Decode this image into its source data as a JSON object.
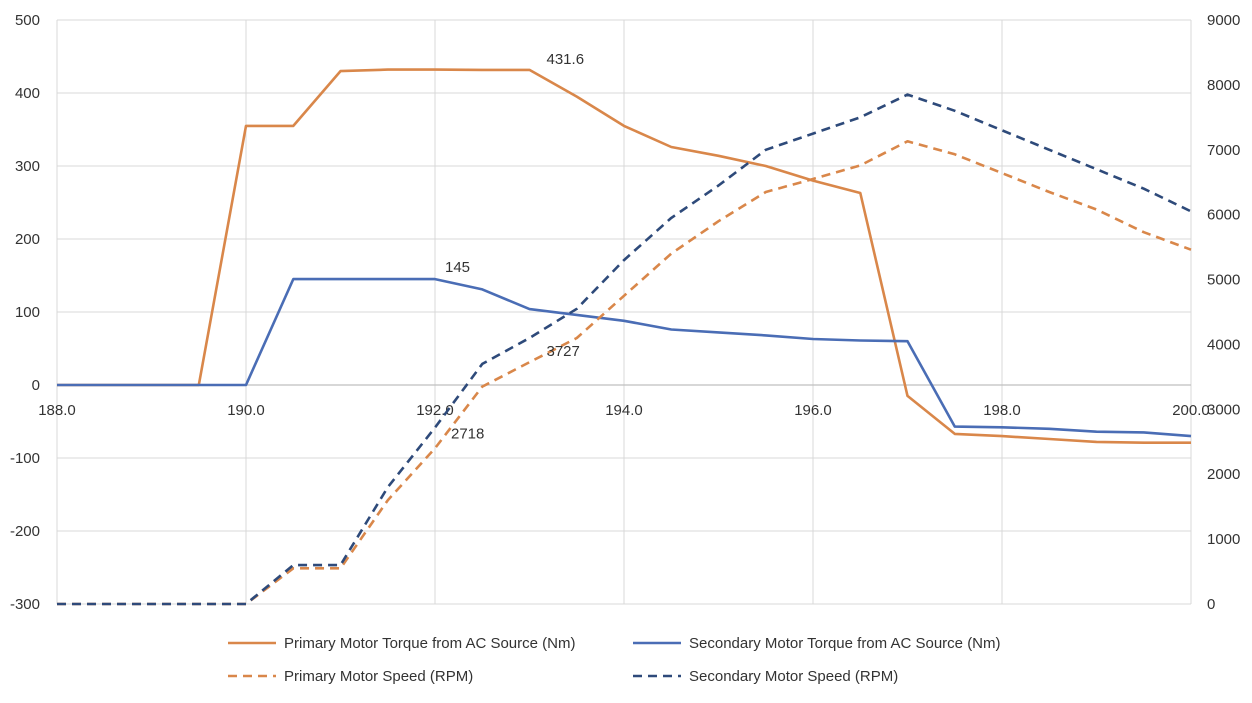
{
  "chart_data": {
    "type": "line",
    "x_axis": {
      "min": 188,
      "max": 200,
      "ticks": [
        188,
        190,
        192,
        194,
        196,
        198,
        200
      ],
      "tick_labels": [
        "188.0",
        "190.0",
        "192.0",
        "194.0",
        "196.0",
        "198.0",
        "200.0"
      ],
      "grid": true
    },
    "y_left": {
      "min": -300,
      "max": 500,
      "ticks": [
        500,
        400,
        300,
        200,
        100,
        0,
        -100,
        -200,
        -300
      ],
      "tick_labels": [
        "500",
        "400",
        "300",
        "200",
        "100",
        "0",
        "-100",
        "-200",
        "-300"
      ],
      "grid": true
    },
    "y_right": {
      "min": 0,
      "max": 9000,
      "ticks": [
        9000,
        8000,
        7000,
        6000,
        5000,
        4000,
        3000,
        2000,
        1000,
        0
      ],
      "tick_labels": [
        "9000",
        "8000",
        "7000",
        "6000",
        "5000",
        "4000",
        "3000",
        "2000",
        "1000",
        "0"
      ]
    },
    "series": [
      {
        "name": "Primary Motor Torque from AC Source (Nm)",
        "axis": "left",
        "style": "solid",
        "color": "#D9874A",
        "x": [
          188,
          189.5,
          190,
          190.5,
          191,
          191.5,
          192,
          192.5,
          193,
          193.5,
          194,
          194.5,
          195,
          195.5,
          196,
          196.5,
          197,
          197.5,
          198,
          198.5,
          199,
          199.5,
          200
        ],
        "y": [
          0,
          0,
          355,
          355,
          430,
          432,
          432,
          431.6,
          431.6,
          395,
          355,
          326,
          314,
          300,
          280,
          263,
          -15,
          -67,
          -70,
          -74,
          -78,
          -79,
          -79
        ]
      },
      {
        "name": "Secondary Motor Torque from AC Source (Nm)",
        "axis": "left",
        "style": "solid",
        "color": "#4A6DB5",
        "x": [
          188,
          190,
          190.5,
          191,
          192,
          192.5,
          193,
          193.5,
          194,
          194.5,
          195,
          195.5,
          196,
          196.5,
          197,
          197.5,
          198,
          198.5,
          199,
          199.5,
          200
        ],
        "y": [
          0,
          0,
          145,
          145,
          145,
          131,
          104,
          96,
          88,
          76,
          72,
          68,
          63,
          61,
          60,
          -57,
          -58,
          -60,
          -64,
          -65,
          -70
        ]
      },
      {
        "name": "Primary Motor Speed (RPM)",
        "axis": "right",
        "style": "dashed",
        "color": "#D9874A",
        "x": [
          188,
          190,
          190.5,
          191,
          191.5,
          192,
          192.5,
          193,
          193.5,
          194,
          194.5,
          195,
          195.5,
          196,
          196.5,
          197,
          197.5,
          198,
          198.5,
          199,
          199.5,
          200
        ],
        "y": [
          0,
          0,
          550,
          550,
          1600,
          2400,
          3350,
          3727,
          4100,
          4750,
          5400,
          5900,
          6350,
          6550,
          6760,
          7130,
          6930,
          6640,
          6350,
          6080,
          5730,
          5460
        ]
      },
      {
        "name": "Secondary Motor Speed (RPM)",
        "axis": "right",
        "style": "dashed",
        "color": "#2E4A7A",
        "x": [
          188,
          190,
          190.5,
          191,
          191.5,
          192,
          192.5,
          193,
          193.5,
          194,
          194.5,
          195,
          195.5,
          196,
          196.5,
          197,
          197.5,
          198,
          198.5,
          199,
          199.5,
          200
        ],
        "y": [
          0,
          0,
          600,
          600,
          1800,
          2718,
          3700,
          4100,
          4550,
          5300,
          5950,
          6450,
          7000,
          7250,
          7500,
          7850,
          7600,
          7300,
          7000,
          6700,
          6400,
          6050
        ]
      }
    ],
    "annotations": [
      {
        "text": "431.6",
        "x": 193,
        "y": 431.6,
        "axis": "left"
      },
      {
        "text": "145",
        "x": 192,
        "y": 145,
        "axis": "left"
      },
      {
        "text": "3727",
        "x": 193,
        "y": 3727,
        "axis": "right"
      },
      {
        "text": "2718",
        "x": 192,
        "y": 2718,
        "axis": "right"
      }
    ],
    "legend": {
      "position": "bottom",
      "entries": [
        {
          "label": "Primary Motor Torque from AC Source (Nm)",
          "series_index": 0
        },
        {
          "label": "Secondary Motor Torque from AC Source (Nm)",
          "series_index": 1
        },
        {
          "label": "Primary Motor Speed (RPM)",
          "series_index": 2
        },
        {
          "label": "Secondary Motor Speed (RPM)",
          "series_index": 3
        }
      ]
    }
  }
}
